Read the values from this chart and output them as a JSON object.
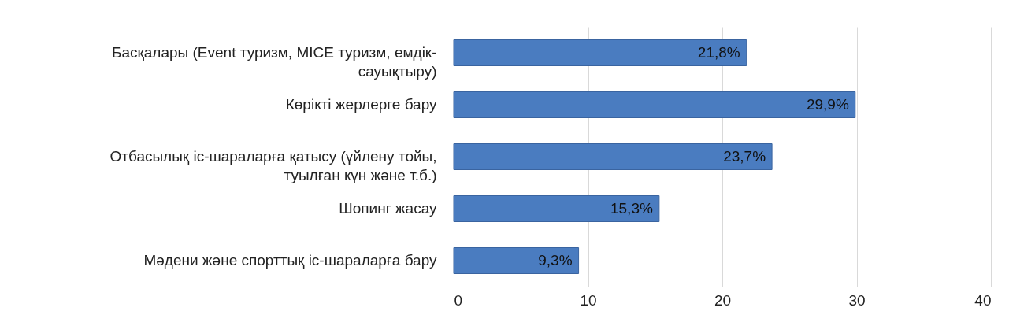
{
  "chart_data": {
    "type": "bar",
    "orientation": "horizontal",
    "categories": [
      "Басқалары (Event туризм, MICE туризм, емдік-сауықтыру)",
      "Көрікті жерлерге бару",
      "Отбасылық іс-шараларға қатысу (үйлену тойы, туылған күн және т.б.)",
      "Шопинг  жасау",
      "Мәдени және спорттық іс-шараларға бару"
    ],
    "values": [
      21.8,
      29.9,
      23.7,
      15.3,
      9.3
    ],
    "value_labels": [
      "21,8%",
      "29,9%",
      "23,7%",
      "15,3%",
      "9,3%"
    ],
    "color": "#4a7cc0",
    "xlim": [
      0,
      40
    ],
    "xticks": [
      0,
      10,
      20,
      30,
      40
    ],
    "grid": "x"
  }
}
